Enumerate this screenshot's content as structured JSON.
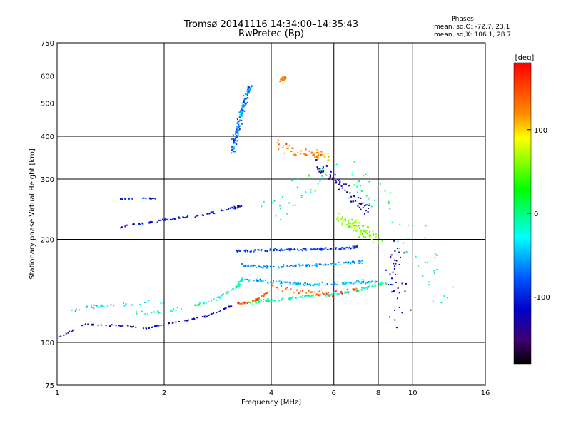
{
  "header": {
    "title": "Tromsø 20141116 14:34:00–14:35:43",
    "subtitle": "RwPretec (Bp)"
  },
  "phases": {
    "title": "Phases",
    "line_o": "mean, sd,O: -72.7, 23.1",
    "line_x": "mean, sd,X: 106.1, 28.7"
  },
  "colorbar": {
    "unit": "[deg]",
    "min": -180,
    "max": 180,
    "ticks": [
      100,
      0,
      -100
    ]
  },
  "chart_data": {
    "type": "scatter",
    "xlabel": "Frequency [MHz]",
    "ylabel": "Stationary phase Virtual Height [km]",
    "x_scale": "log",
    "y_scale": "log",
    "xlim": [
      1,
      16
    ],
    "ylim": [
      75,
      750
    ],
    "x_ticks": [
      1,
      2,
      4,
      6,
      8,
      10,
      16
    ],
    "y_ticks": [
      75,
      100,
      200,
      300,
      400,
      500,
      600,
      750
    ],
    "x_grid": [
      2,
      4,
      6,
      8,
      10
    ],
    "y_grid": [
      100,
      200,
      300,
      400,
      500,
      600
    ],
    "traces": [
      {
        "f": [
          1.0,
          1.2,
          1.5,
          1.8,
          2.0,
          2.3,
          2.6,
          2.9,
          3.1
        ],
        "h": [
          103,
          113,
          112,
          110,
          113,
          116,
          119,
          124,
          128
        ],
        "phase": -120,
        "count": 90,
        "spread": 0.015
      },
      {
        "f": [
          1.6,
          2.0,
          2.4,
          2.8,
          3.2,
          3.3
        ],
        "h": [
          121,
          123,
          127,
          134,
          145,
          152
        ],
        "phase": -20,
        "count": 70,
        "spread": 0.035
      },
      {
        "f": [
          3.2,
          3.6,
          3.9
        ],
        "h": [
          130,
          132,
          140
        ],
        "phase": 150,
        "count": 45,
        "spread": 0.02
      },
      {
        "f": [
          1.1,
          1.3,
          1.6,
          2.0
        ],
        "h": [
          125,
          128,
          130,
          132
        ],
        "phase": -40,
        "count": 30,
        "spread": 0.05
      },
      {
        "f": [
          1.5,
          2.0,
          2.6,
          3.1,
          3.3
        ],
        "h": [
          217,
          228,
          236,
          247,
          250
        ],
        "phase": -110,
        "count": 90,
        "spread": 0.02
      },
      {
        "f": [
          1.5,
          1.7,
          1.9
        ],
        "h": [
          262,
          264,
          263
        ],
        "phase": -100,
        "count": 20,
        "spread": 0.01
      },
      {
        "f": [
          3.1,
          3.2,
          3.3,
          3.4,
          3.5
        ],
        "h": [
          360,
          410,
          470,
          520,
          560
        ],
        "phase": -70,
        "count": 160,
        "spread": 0.06
      },
      {
        "f": [
          3.2,
          4.0,
          5.0,
          6.2,
          7.0
        ],
        "h": [
          185,
          186,
          187,
          188,
          190
        ],
        "phase": -90,
        "count": 120,
        "spread": 0.025
      },
      {
        "f": [
          3.3,
          4.0,
          5.0,
          6.0,
          7.3
        ],
        "h": [
          168,
          166,
          168,
          170,
          172
        ],
        "phase": -60,
        "count": 110,
        "spread": 0.03
      },
      {
        "f": [
          3.3,
          4.0,
          5.0,
          6.0,
          7.0,
          8.0
        ],
        "h": [
          153,
          150,
          148,
          148,
          150,
          150
        ],
        "phase": -50,
        "count": 120,
        "spread": 0.035
      },
      {
        "f": [
          3.5,
          4.2,
          5.0,
          6.0,
          7.0,
          8.5
        ],
        "h": [
          131,
          133,
          136,
          138,
          142,
          150
        ],
        "phase": -10,
        "count": 110,
        "spread": 0.03
      },
      {
        "f": [
          4.2,
          4.6,
          5.2,
          5.8
        ],
        "h": [
          380,
          360,
          355,
          350
        ],
        "phase": 120,
        "count": 60,
        "spread": 0.1
      },
      {
        "f": [
          4.2,
          4.4
        ],
        "h": [
          580,
          595
        ],
        "phase": 140,
        "count": 25,
        "spread": 0.03
      },
      {
        "f": [
          5.2,
          6.0,
          7.0,
          7.5
        ],
        "h": [
          330,
          300,
          260,
          240
        ],
        "phase": -130,
        "count": 70,
        "spread": 0.12
      },
      {
        "f": [
          6.2,
          6.8,
          7.4,
          8.0
        ],
        "h": [
          230,
          220,
          210,
          200
        ],
        "phase": 60,
        "count": 90,
        "spread": 0.12
      },
      {
        "f": [
          4.0,
          5.0,
          6.0,
          7.0
        ],
        "h": [
          145,
          140,
          138,
          143
        ],
        "phase": 140,
        "count": 60,
        "spread": 0.06
      },
      {
        "f": [
          9.0,
          9.1,
          9.2
        ],
        "h": [
          190,
          140,
          110
        ],
        "phase": -120,
        "count": 40,
        "spread": 0.25
      },
      {
        "f": [
          4.0,
          6.0,
          8.0,
          10.0,
          13.0
        ],
        "h": [
          250,
          320,
          270,
          200,
          120
        ],
        "phase": 0,
        "count": 90,
        "spread": 0.45
      }
    ]
  }
}
